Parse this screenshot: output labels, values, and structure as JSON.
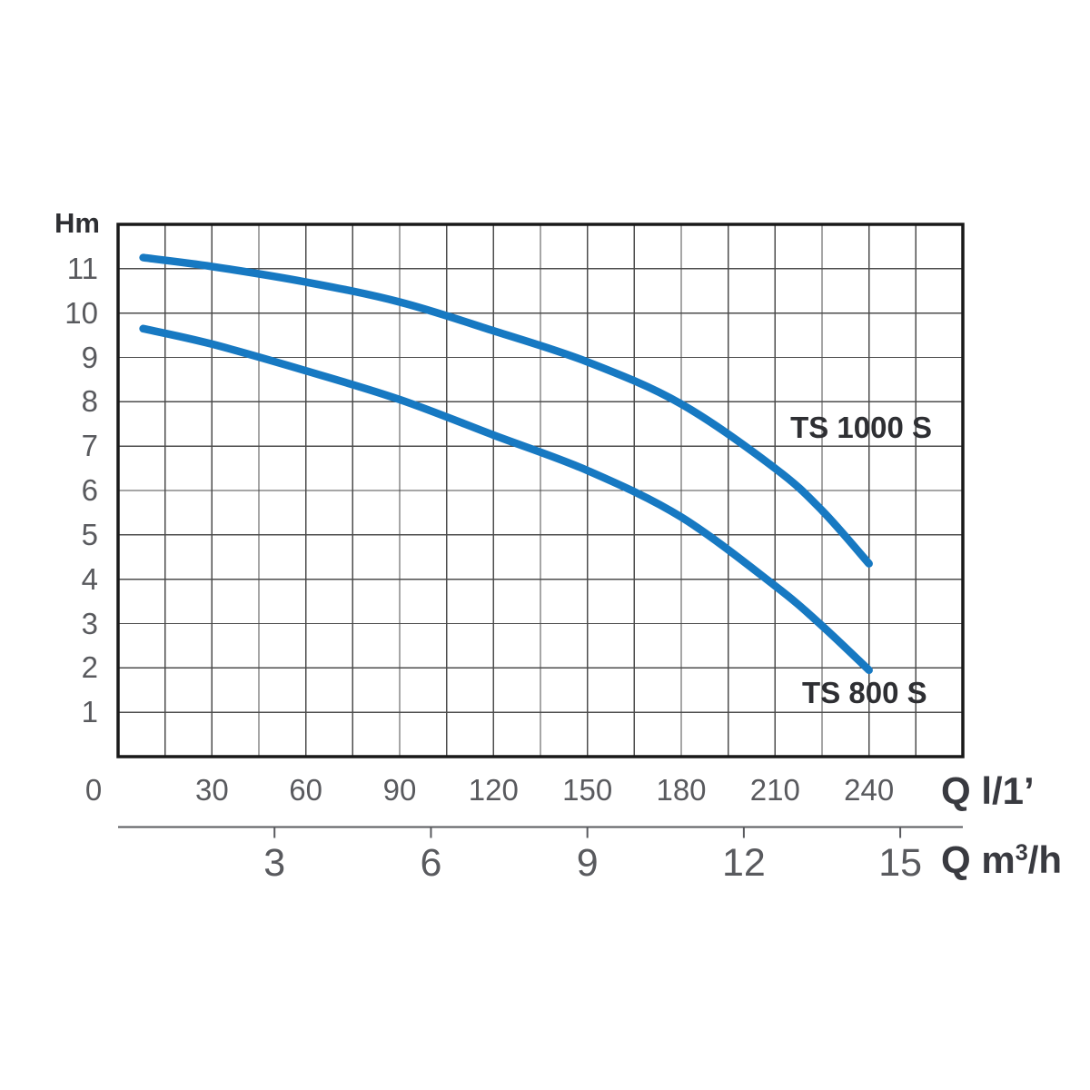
{
  "chart_data": {
    "type": "line",
    "grid": true,
    "legend_position": "inline-labels",
    "y_axis": {
      "label": "Hm",
      "min": 0,
      "max": 12,
      "grid_step": 1,
      "ticks": [
        "1",
        "2",
        "3",
        "4",
        "5",
        "6",
        "7",
        "8",
        "9",
        "10",
        "11"
      ]
    },
    "x_axis": {
      "label": "Q l/1’",
      "min": 0,
      "max": 270,
      "grid_step": 15,
      "ticks": [
        "0",
        "30",
        "60",
        "90",
        "120",
        "150",
        "180",
        "210",
        "240"
      ]
    },
    "x_axis_secondary": {
      "label_prefix": "Q m",
      "label_sup": "3",
      "label_suffix": "/h",
      "ticks": [
        "3",
        "6",
        "9",
        "12",
        "15"
      ],
      "litres_per_minute_per_unit": 16.6667
    },
    "series": [
      {
        "name": "TS 1000 S",
        "points": [
          [
            8,
            11.25
          ],
          [
            30,
            11.05
          ],
          [
            60,
            10.7
          ],
          [
            90,
            10.25
          ],
          [
            120,
            9.6
          ],
          [
            150,
            8.9
          ],
          [
            180,
            7.95
          ],
          [
            210,
            6.5
          ],
          [
            225,
            5.55
          ],
          [
            240,
            4.35
          ]
        ],
        "label_anchor": [
          237.5,
          7.41
        ]
      },
      {
        "name": "TS 800 S",
        "points": [
          [
            8,
            9.65
          ],
          [
            30,
            9.3
          ],
          [
            60,
            8.7
          ],
          [
            90,
            8.05
          ],
          [
            120,
            7.25
          ],
          [
            150,
            6.45
          ],
          [
            180,
            5.4
          ],
          [
            210,
            3.85
          ],
          [
            225,
            2.95
          ],
          [
            240,
            1.95
          ]
        ],
        "label_anchor": [
          238.6,
          1.43
        ]
      }
    ],
    "colors": {
      "curve": "#1779c2",
      "grid": "#4c4c4c",
      "border": "#191919",
      "tick_text": "#595a5e",
      "label_text": "#2e2f33",
      "background": "#ffffff"
    }
  }
}
